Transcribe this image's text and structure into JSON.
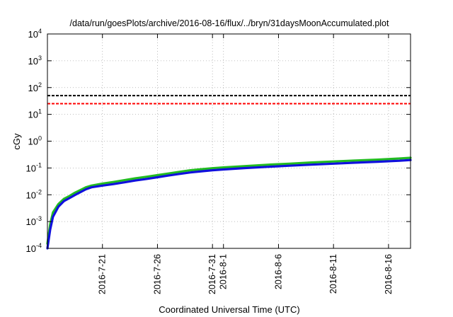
{
  "chart_data": {
    "type": "line",
    "title": "/data/run/goesPlots/archive/2016-08-16/flux/../bryn/31daysMoonAccumulated.plot",
    "xlabel": "Coordinated Universal Time (UTC)",
    "ylabel": "cGy",
    "x_range": [
      "2016-07-16",
      "2016-08-18"
    ],
    "y_scale": "log",
    "ylim": [
      0.0001,
      10000
    ],
    "grid": true,
    "y_ticks": [
      {
        "value": 0.0001,
        "base": "10",
        "exp": "-4"
      },
      {
        "value": 0.001,
        "base": "10",
        "exp": "-3"
      },
      {
        "value": 0.01,
        "base": "10",
        "exp": "-2"
      },
      {
        "value": 0.1,
        "base": "10",
        "exp": "-1"
      },
      {
        "value": 1,
        "base": "10",
        "exp": "0"
      },
      {
        "value": 10,
        "base": "10",
        "exp": "1"
      },
      {
        "value": 100,
        "base": "10",
        "exp": "2"
      },
      {
        "value": 1000,
        "base": "10",
        "exp": "3"
      },
      {
        "value": 10000,
        "base": "10",
        "exp": "4"
      }
    ],
    "x_ticks": [
      {
        "date": "2016-07-21",
        "label": "2016-7-21"
      },
      {
        "date": "2016-07-26",
        "label": "2016-7-26"
      },
      {
        "date": "2016-07-31",
        "label": "2016-7-31"
      },
      {
        "date": "2016-08-01",
        "label": "2016-8-1"
      },
      {
        "date": "2016-08-06",
        "label": "2016-8-6"
      },
      {
        "date": "2016-08-11",
        "label": "2016-8-11"
      },
      {
        "date": "2016-08-16",
        "label": "2016-8-16"
      }
    ],
    "thresholds": [
      {
        "value": 50,
        "color": "#000000",
        "style": "dashed"
      },
      {
        "value": 25,
        "color": "#ff0000",
        "style": "dashed"
      }
    ],
    "series": [
      {
        "color": "#22bb22",
        "points": [
          [
            "2016-07-16T00:00",
            0.00015
          ],
          [
            "2016-07-16T06:00",
            0.0008
          ],
          [
            "2016-07-16T12:00",
            0.0022
          ],
          [
            "2016-07-17T00:00",
            0.0045
          ],
          [
            "2016-07-17T12:00",
            0.007
          ],
          [
            "2016-07-18T00:00",
            0.009
          ],
          [
            "2016-07-18T12:00",
            0.012
          ],
          [
            "2016-07-19T00:00",
            0.015
          ],
          [
            "2016-07-19T12:00",
            0.019
          ],
          [
            "2016-07-20T00:00",
            0.022
          ],
          [
            "2016-07-21T00:00",
            0.026
          ],
          [
            "2016-07-22T00:00",
            0.03
          ],
          [
            "2016-07-23T00:00",
            0.035
          ],
          [
            "2016-07-24T00:00",
            0.041
          ],
          [
            "2016-07-25T00:00",
            0.047
          ],
          [
            "2016-07-26T00:00",
            0.054
          ],
          [
            "2016-07-27T00:00",
            0.062
          ],
          [
            "2016-07-28T00:00",
            0.072
          ],
          [
            "2016-07-29T00:00",
            0.082
          ],
          [
            "2016-07-30T00:00",
            0.09
          ],
          [
            "2016-07-31T00:00",
            0.098
          ],
          [
            "2016-08-01T00:00",
            0.105
          ],
          [
            "2016-08-03T00:00",
            0.118
          ],
          [
            "2016-08-05T00:00",
            0.132
          ],
          [
            "2016-08-07T00:00",
            0.145
          ],
          [
            "2016-08-09T00:00",
            0.16
          ],
          [
            "2016-08-11T00:00",
            0.175
          ],
          [
            "2016-08-13T00:00",
            0.19
          ],
          [
            "2016-08-15T00:00",
            0.205
          ],
          [
            "2016-08-17T00:00",
            0.225
          ],
          [
            "2016-08-18T00:00",
            0.24
          ]
        ]
      },
      {
        "color": "#1010dd",
        "points": [
          [
            "2016-07-16T00:00",
            0.0001
          ],
          [
            "2016-07-16T06:00",
            0.0005
          ],
          [
            "2016-07-16T12:00",
            0.0015
          ],
          [
            "2016-07-17T00:00",
            0.0036
          ],
          [
            "2016-07-17T12:00",
            0.0058
          ],
          [
            "2016-07-18T00:00",
            0.0075
          ],
          [
            "2016-07-18T12:00",
            0.0098
          ],
          [
            "2016-07-19T00:00",
            0.0125
          ],
          [
            "2016-07-19T12:00",
            0.016
          ],
          [
            "2016-07-20T00:00",
            0.019
          ],
          [
            "2016-07-21T00:00",
            0.022
          ],
          [
            "2016-07-22T00:00",
            0.025
          ],
          [
            "2016-07-23T00:00",
            0.029
          ],
          [
            "2016-07-24T00:00",
            0.034
          ],
          [
            "2016-07-25T00:00",
            0.039
          ],
          [
            "2016-07-26T00:00",
            0.045
          ],
          [
            "2016-07-27T00:00",
            0.052
          ],
          [
            "2016-07-28T00:00",
            0.06
          ],
          [
            "2016-07-29T00:00",
            0.068
          ],
          [
            "2016-07-30T00:00",
            0.075
          ],
          [
            "2016-07-31T00:00",
            0.082
          ],
          [
            "2016-08-01T00:00",
            0.088
          ],
          [
            "2016-08-03T00:00",
            0.099
          ],
          [
            "2016-08-05T00:00",
            0.11
          ],
          [
            "2016-08-07T00:00",
            0.121
          ],
          [
            "2016-08-09T00:00",
            0.133
          ],
          [
            "2016-08-11T00:00",
            0.145
          ],
          [
            "2016-08-13T00:00",
            0.158
          ],
          [
            "2016-08-15T00:00",
            0.17
          ],
          [
            "2016-08-17T00:00",
            0.186
          ],
          [
            "2016-08-18T00:00",
            0.198
          ]
        ]
      }
    ]
  }
}
